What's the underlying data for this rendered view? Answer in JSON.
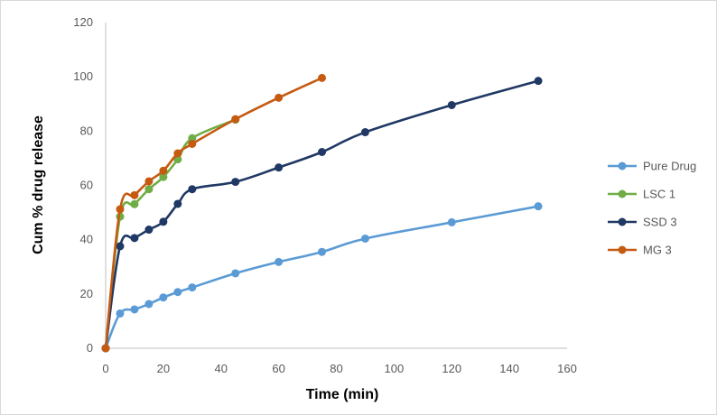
{
  "chart_data": {
    "type": "line",
    "title": "",
    "xlabel": "Time (min)",
    "ylabel": "Cum % drug release",
    "xlim": [
      0,
      160
    ],
    "ylim": [
      0,
      120
    ],
    "xticks": [
      0,
      20,
      40,
      60,
      80,
      100,
      120,
      140,
      160
    ],
    "yticks": [
      0,
      20,
      40,
      60,
      80,
      100,
      120
    ],
    "grid": false,
    "legend_position": "right",
    "series": [
      {
        "name": "Pure Drug",
        "color": "#5b9bd5",
        "x": [
          0,
          5,
          10,
          15,
          20,
          25,
          30,
          45,
          60,
          75,
          90,
          120,
          150
        ],
        "y": [
          0,
          12.8,
          14.3,
          16.3,
          18.7,
          20.7,
          22.4,
          27.6,
          31.8,
          35.5,
          40.4,
          46.4,
          52.3
        ]
      },
      {
        "name": "LSC 1",
        "color": "#70ad47",
        "x": [
          0,
          5,
          10,
          15,
          20,
          25,
          30,
          45
        ],
        "y": [
          0,
          48.5,
          53.1,
          58.6,
          63.1,
          69.6,
          77.4,
          84.2
        ]
      },
      {
        "name": "SSD 3",
        "color": "#1f3864",
        "x": [
          0,
          5,
          10,
          15,
          20,
          25,
          30,
          45,
          60,
          75,
          90,
          120,
          150
        ],
        "y": [
          0,
          37.6,
          40.6,
          43.7,
          46.6,
          53.2,
          58.6,
          61.3,
          66.6,
          72.3,
          79.6,
          89.6,
          98.5
        ]
      },
      {
        "name": "MG 3",
        "color": "#c55a11",
        "x": [
          0,
          5,
          10,
          15,
          20,
          25,
          30,
          45,
          60,
          75
        ],
        "y": [
          0,
          51.2,
          56.4,
          61.5,
          65.4,
          71.8,
          75.3,
          84.4,
          92.3,
          99.6
        ]
      }
    ]
  }
}
